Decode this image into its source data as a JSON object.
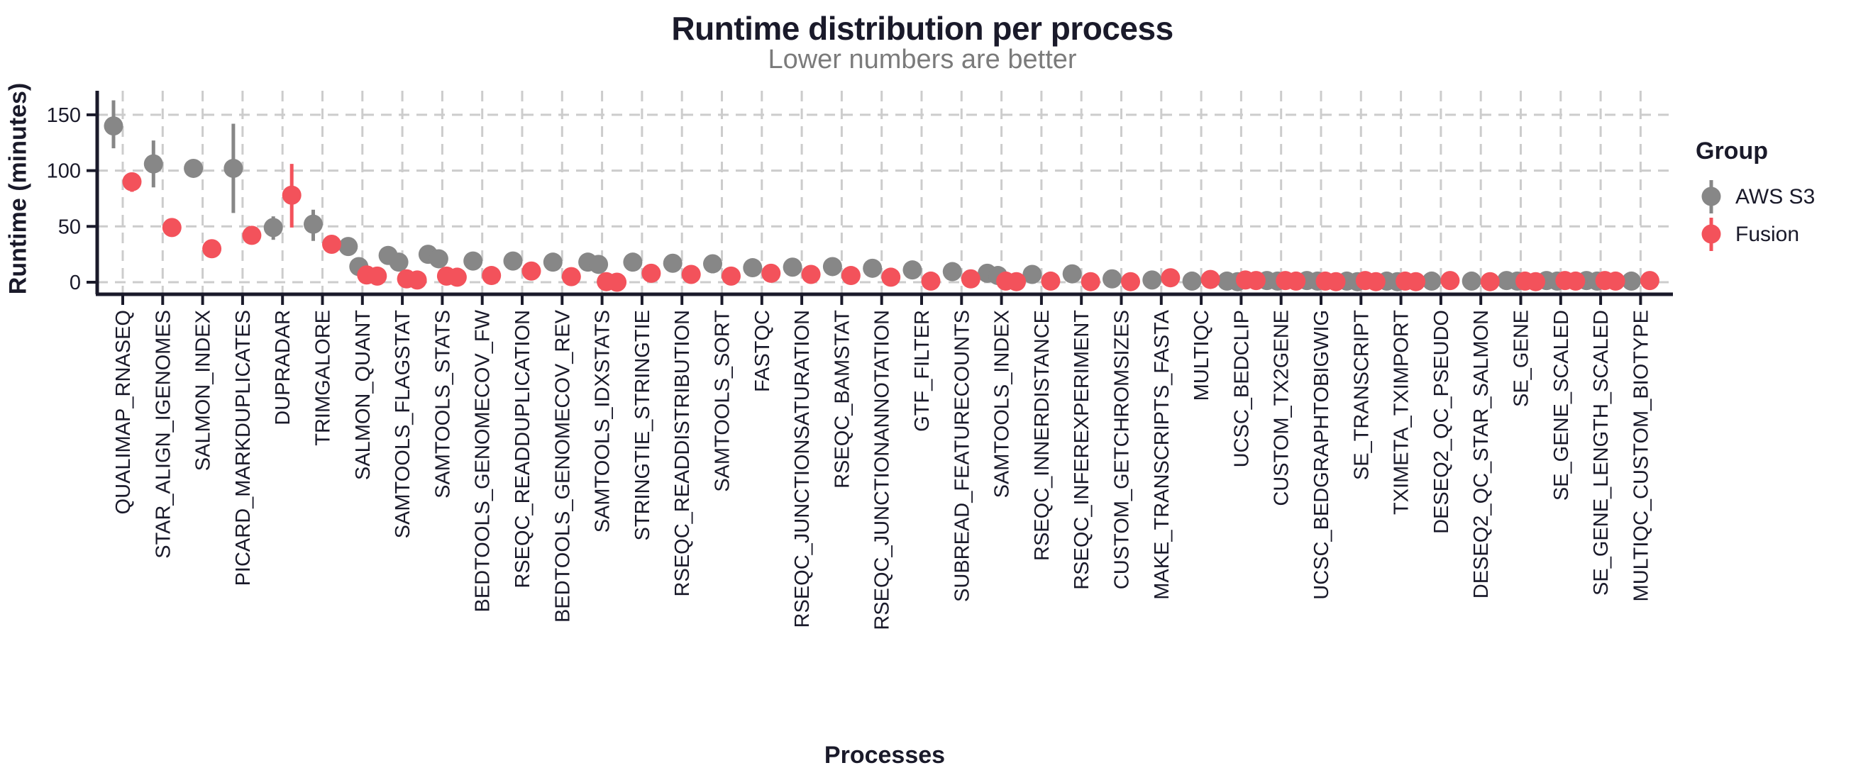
{
  "title": "Runtime distribution per process",
  "subtitle": "Lower numbers are better",
  "colors": {
    "text": "#1a1a2a",
    "subtitle_text": "#7b7b7b",
    "gridline": "#cccccc",
    "aws_s3": "#878787",
    "fusion": "#F3525B",
    "background": "#ffffff"
  },
  "chart_data": {
    "type": "scatter",
    "title": "Runtime distribution per process",
    "subtitle": "Lower numbers are better",
    "xlabel": "Processes",
    "ylabel": "Runtime (minutes)",
    "units": "minutes",
    "ylim": [
      0,
      165
    ],
    "yticks": [
      0,
      50,
      100,
      150
    ],
    "grid": {
      "style": "dashed",
      "horizontal_at": [
        0,
        50,
        100,
        150
      ],
      "vertical": "one dashed line per category"
    },
    "legend": {
      "title": "Group",
      "position": "right",
      "entries": [
        {
          "label": "AWS S3",
          "color": "#878787"
        },
        {
          "label": "Fusion",
          "color": "#F3525B"
        }
      ]
    },
    "categories": [
      "QUALIMAP_RNASEQ",
      "STAR_ALIGN_IGENOMES",
      "SALMON_INDEX",
      "PICARD_MARKDUPLICATES",
      "DUPRADAR",
      "TRIMGALORE",
      "SALMON_QUANT",
      "SAMTOOLS_FLAGSTAT",
      "SAMTOOLS_STATS",
      "BEDTOOLS_GENOMECOV_FW",
      "RSEQC_READDUPLICATION",
      "BEDTOOLS_GENOMECOV_REV",
      "SAMTOOLS_IDXSTATS",
      "STRINGTIE_STRINGTIE",
      "RSEQC_READDISTRIBUTION",
      "SAMTOOLS_SORT",
      "FASTQC",
      "RSEQC_JUNCTIONSATURATION",
      "RSEQC_BAMSTAT",
      "RSEQC_JUNCTIONANNOTATION",
      "GTF_FILTER",
      "SUBREAD_FEATURECOUNTS",
      "SAMTOOLS_INDEX",
      "RSEQC_INNERDISTANCE",
      "RSEQC_INFEREXPERIMENT",
      "CUSTOM_GETCHROMSIZES",
      "MAKE_TRANSCRIPTS_FASTA",
      "MULTIQC",
      "UCSC_BEDCLIP",
      "CUSTOM_TX2GENE",
      "UCSC_BEDGRAPHTOBIGWIG",
      "SE_TRANSCRIPT",
      "TXIMETA_TXIMPORT",
      "DESEQ2_QC_PSEUDO",
      "DESEQ2_QC_STAR_SALMON",
      "SE_GENE",
      "SE_GENE_SCALED",
      "SE_GENE_LENGTH_SCALED",
      "MULTIQC_CUSTOM_BIOTYPE"
    ],
    "series": [
      {
        "name": "AWS S3",
        "color": "#878787",
        "points": [
          [
            140
          ],
          [
            106
          ],
          [
            102
          ],
          [
            102
          ],
          [
            49
          ],
          [
            52
          ],
          [
            32,
            14
          ],
          [
            24,
            18
          ],
          [
            25,
            21
          ],
          [
            19
          ],
          [
            19
          ],
          [
            18
          ],
          [
            18,
            16
          ],
          [
            18
          ],
          [
            17
          ],
          [
            16.5
          ],
          [
            13
          ],
          [
            13.5
          ],
          [
            14
          ],
          [
            12.5
          ],
          [
            11
          ],
          [
            9.5
          ],
          [
            8,
            6
          ],
          [
            7
          ],
          [
            7.5
          ],
          [
            3
          ],
          [
            2
          ],
          [
            1
          ],
          [
            1,
            0.5
          ],
          [
            1.5,
            1
          ],
          [
            1.5,
            1
          ],
          [
            1,
            0.5
          ],
          [
            1,
            0.5
          ],
          [
            1
          ],
          [
            1
          ],
          [
            1.5,
            1
          ],
          [
            1.5,
            1
          ],
          [
            1.5,
            1
          ],
          [
            1
          ]
        ],
        "ranges": [
          [
            120,
            163
          ],
          [
            85,
            127
          ],
          null,
          [
            62,
            142
          ],
          [
            38,
            59
          ],
          [
            37,
            65
          ],
          null,
          null,
          null,
          null,
          null,
          null,
          null,
          null,
          null,
          [
            8,
            24
          ],
          null,
          null,
          null,
          null,
          null,
          null,
          null,
          null,
          null,
          null,
          null,
          null,
          null,
          null,
          null,
          null,
          null,
          null,
          null,
          null,
          null,
          null,
          null
        ]
      },
      {
        "name": "Fusion",
        "color": "#F3525B",
        "points": [
          [
            90
          ],
          [
            49
          ],
          [
            30
          ],
          [
            42
          ],
          [
            78
          ],
          [
            34
          ],
          [
            6.5,
            5.5
          ],
          [
            3,
            2
          ],
          [
            5.5,
            4.5
          ],
          [
            6
          ],
          [
            10
          ],
          [
            5
          ],
          [
            0.5,
            0
          ],
          [
            8
          ],
          [
            7
          ],
          [
            5.5
          ],
          [
            8
          ],
          [
            7
          ],
          [
            6
          ],
          [
            4.5
          ],
          [
            1
          ],
          [
            3
          ],
          [
            1,
            0.5
          ],
          [
            1
          ],
          [
            0.5
          ],
          [
            0.5
          ],
          [
            4
          ],
          [
            2.5
          ],
          [
            2,
            1.5
          ],
          [
            1.5,
            1
          ],
          [
            1,
            0.5
          ],
          [
            1.5,
            0.5
          ],
          [
            1,
            0.5
          ],
          [
            1.5
          ],
          [
            0.5
          ],
          [
            1,
            0.5
          ],
          [
            1.5,
            1
          ],
          [
            1.5,
            1
          ],
          [
            1.5
          ]
        ],
        "ranges": [
          [
            81,
            95
          ],
          null,
          null,
          null,
          [
            49,
            106
          ],
          null,
          null,
          null,
          null,
          null,
          null,
          null,
          null,
          null,
          null,
          null,
          null,
          null,
          null,
          null,
          null,
          null,
          null,
          null,
          null,
          null,
          null,
          null,
          null,
          null,
          null,
          null,
          null,
          null,
          null,
          null,
          null,
          null,
          null
        ]
      }
    ]
  }
}
